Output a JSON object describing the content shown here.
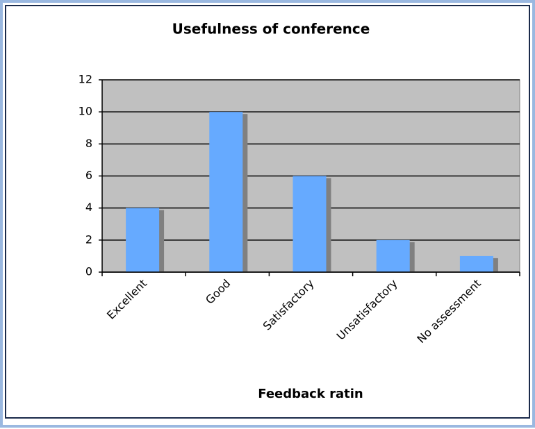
{
  "chart_data": {
    "type": "bar",
    "title": "Usefulness of conference",
    "x_label": "Feedback ratin",
    "categories": [
      "Excellent",
      "Good",
      "Satisfactory",
      "Unsatisfactory",
      "No assessment"
    ],
    "values": [
      4,
      10,
      6,
      2,
      1
    ],
    "color": "#66aaff",
    "ylim": [
      0,
      12
    ],
    "yticks": [
      0,
      2,
      4,
      6,
      8,
      10,
      12
    ],
    "grid": true
  }
}
